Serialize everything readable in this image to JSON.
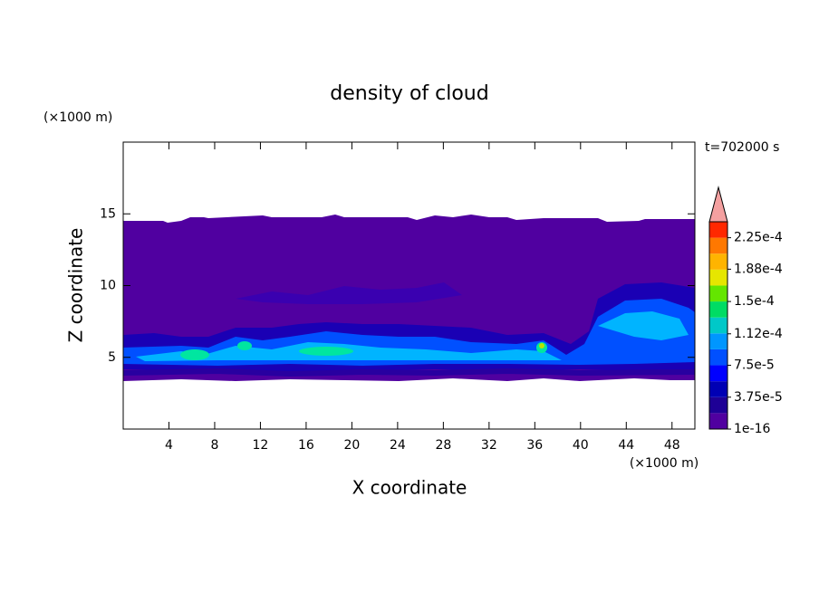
{
  "chart_data": {
    "type": "contour",
    "title": "density of cloud",
    "x_label": "X coordinate",
    "y_label": "Z coordinate",
    "x_unit": "(×1000 m)",
    "y_unit": "(×1000 m)",
    "annotation": "t=702000 s",
    "xlim": [
      0,
      50
    ],
    "ylim": [
      0,
      20
    ],
    "xticks": [
      4,
      8,
      12,
      16,
      20,
      24,
      28,
      32,
      36,
      40,
      44,
      48
    ],
    "yticks": [
      5,
      10,
      15
    ],
    "colorbar": {
      "colors": [
        "#5000a0",
        "#1e0096",
        "#0000b4",
        "#0000ff",
        "#0050ff",
        "#0096ff",
        "#00c8c8",
        "#00dc64",
        "#64e600",
        "#e6e600",
        "#ffb400",
        "#ff7800",
        "#ff2800"
      ],
      "extend_color": "#f4a0a0",
      "ticks": [
        1e-16,
        {
          "value": 3.75e-05,
          "label": "3.75e-5"
        },
        {
          "value": 7.5e-05,
          "label": "7.5e-5"
        },
        {
          "value": 0.000112,
          "label": "1.12e-4"
        },
        {
          "value": 0.00015,
          "label": "1.5e-4"
        },
        {
          "value": 0.000188,
          "label": "1.88e-4"
        },
        {
          "value": 0.000225,
          "label": "2.25e-4"
        }
      ]
    }
  }
}
